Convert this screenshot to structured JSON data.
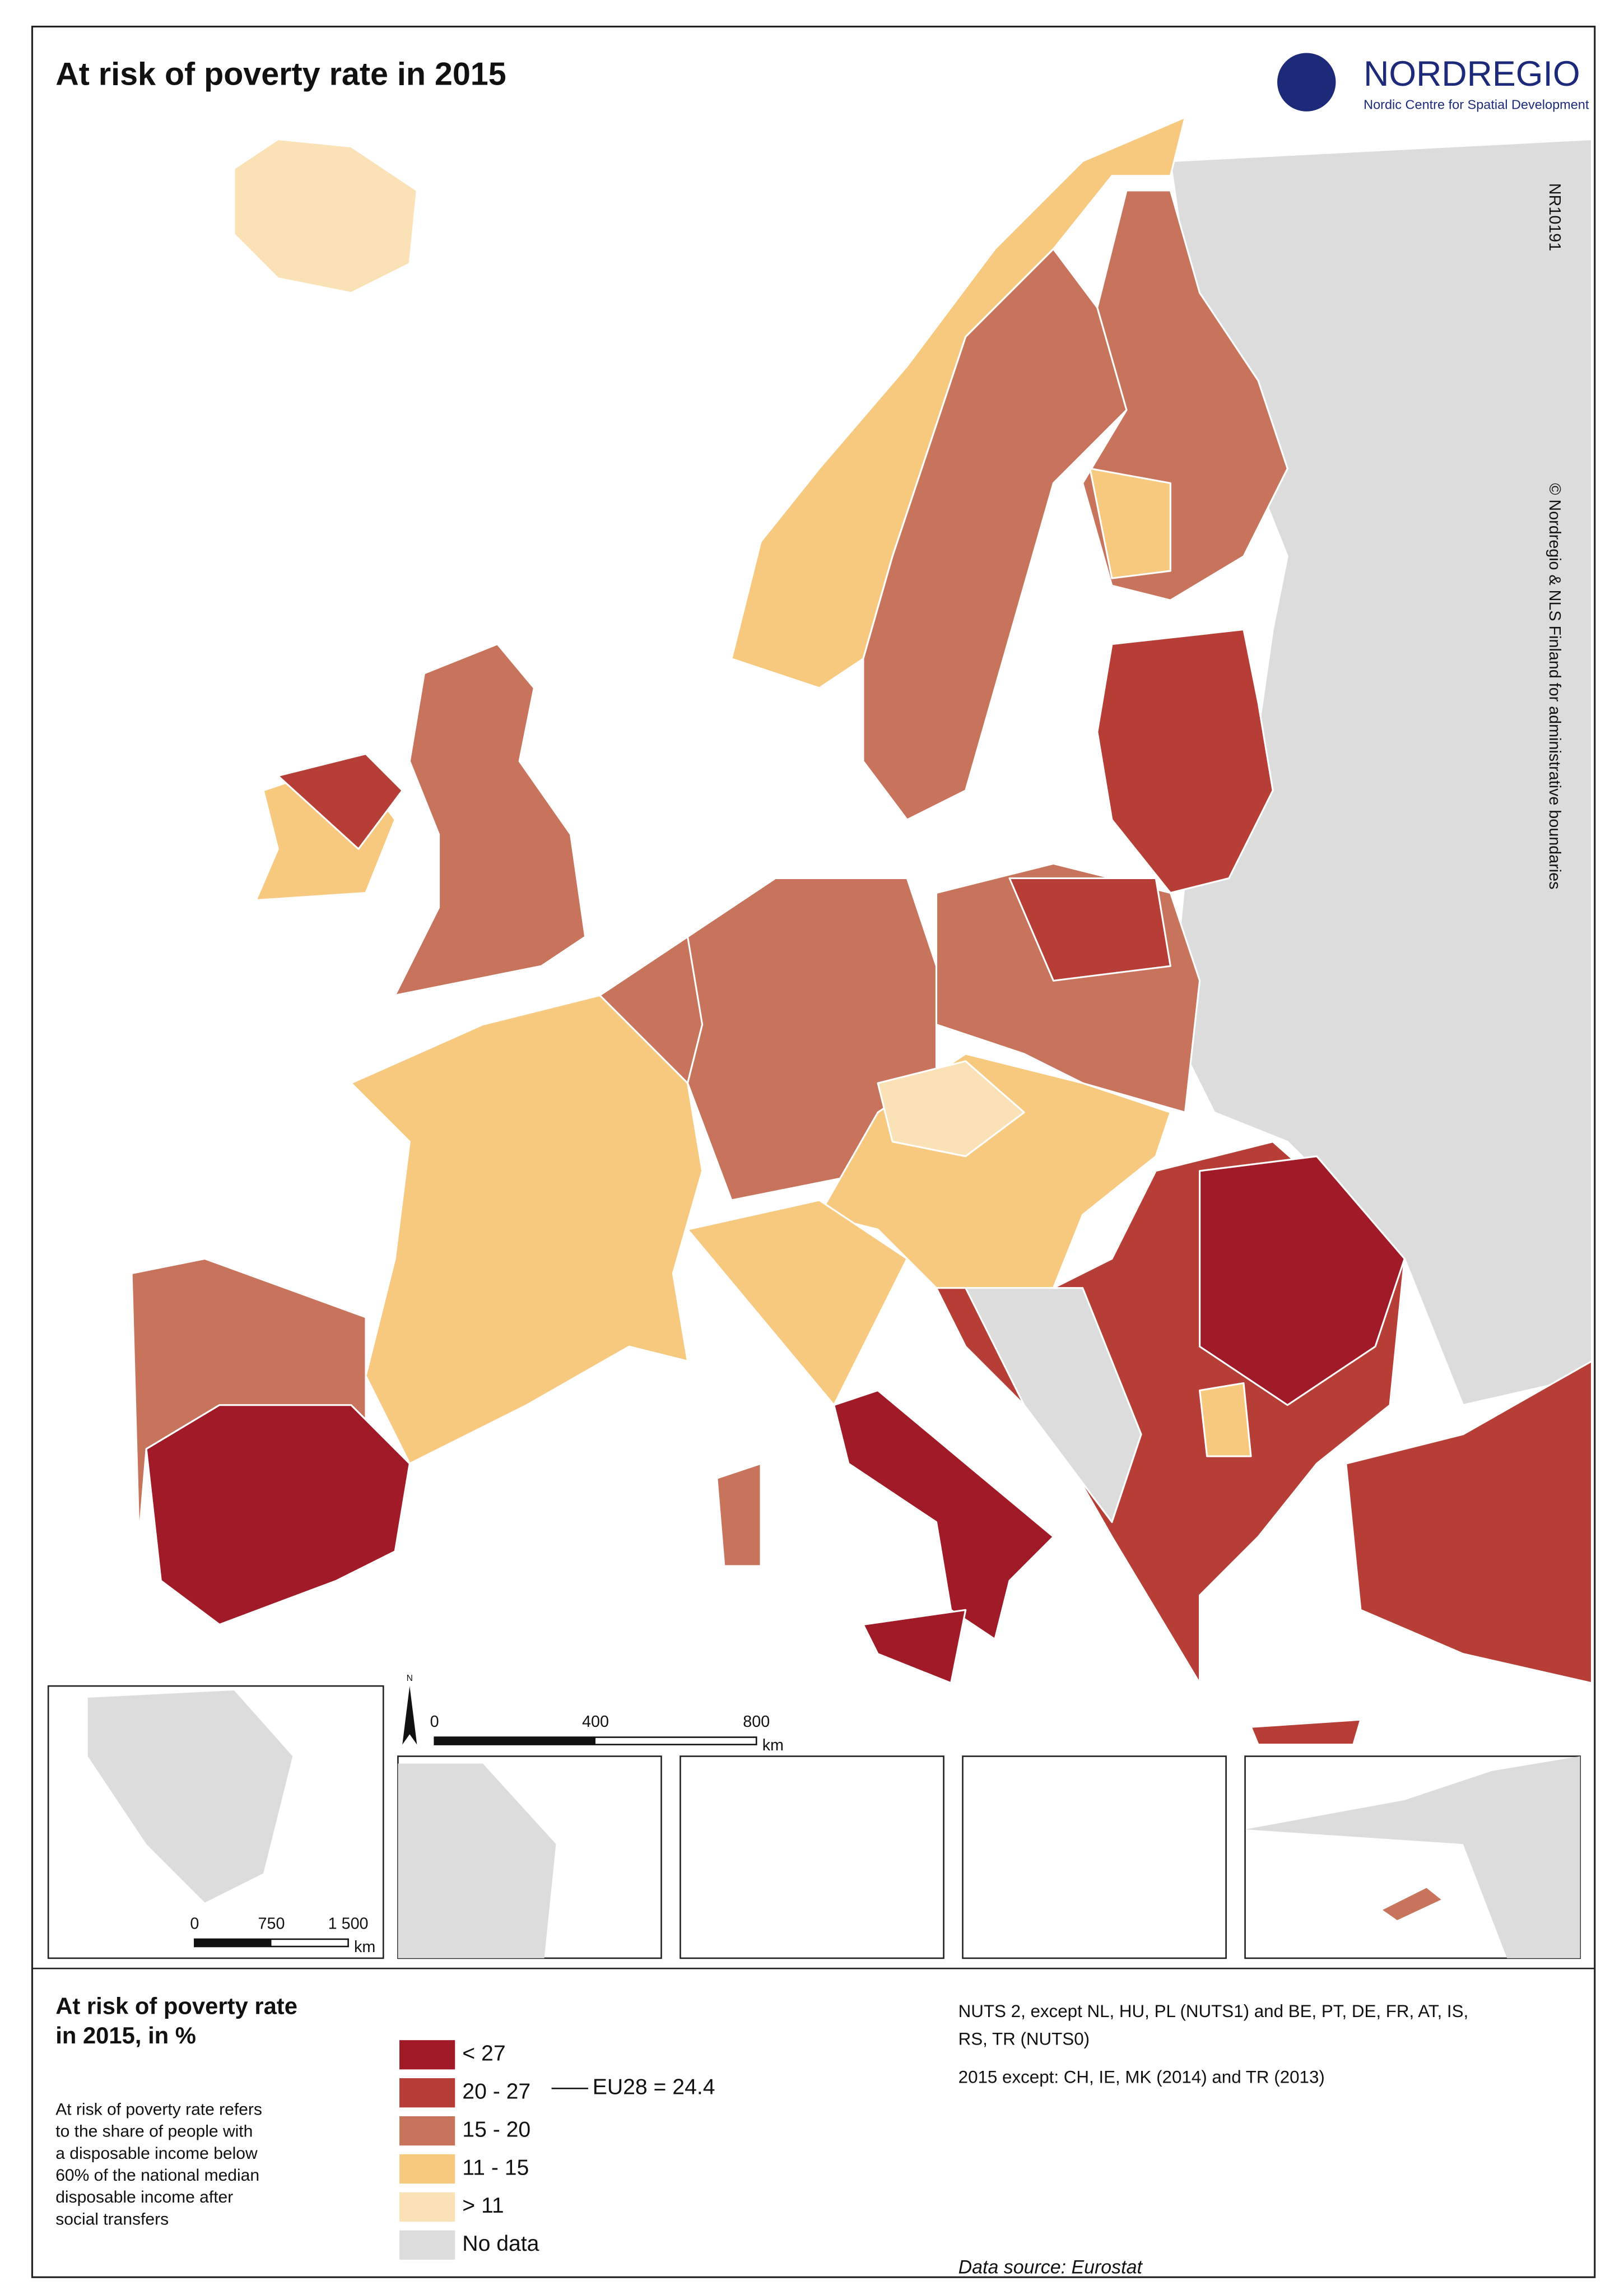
{
  "header": {
    "title": "At risk of poverty rate in 2015",
    "logo": "NORDREGIO",
    "logo_subtitle": "Nordic Centre for Spatial Development",
    "map_id": "NR10191",
    "copyright": "© Nordregio & NLS Finland for administrative boundaries"
  },
  "scale_bar": {
    "north": "N",
    "ticks": [
      0,
      400,
      800
    ],
    "unit": "km"
  },
  "inset_scale_bar": {
    "ticks": [
      0,
      750,
      {
        "value": 1500,
        "label": "1 500"
      }
    ],
    "unit": "km"
  },
  "legend": {
    "title": [
      "At risk of poverty rate",
      "in 2015, in %"
    ],
    "items": [
      {
        "label": "< 27",
        "color": "#a01a28"
      },
      {
        "label": "20 - 27",
        "color": "#b73e36"
      },
      {
        "label": "15 - 20",
        "color": "#c8735c"
      },
      {
        "label": "11 - 15",
        "color": "#f6c97f"
      },
      {
        "label": "> 11",
        "color": "#fae2b6"
      },
      {
        "label": "No data",
        "color": "#dcdcdc"
      }
    ],
    "reference": "EU28 = 24.4",
    "description": [
      "At risk of poverty rate refers",
      "to the share of people with",
      "a disposable income below",
      "60% of the national median",
      "disposable income after",
      "social  transfers"
    ]
  },
  "notes": [
    "NUTS 2, except NL, HU, PL (NUTS1) and BE, PT, DE, FR, AT, IS,",
    "RS, TR (NUTS0)",
    "2015 except: CH, IE, MK (2014) and TR (2013)"
  ],
  "source": "Data source: Eurostat"
}
